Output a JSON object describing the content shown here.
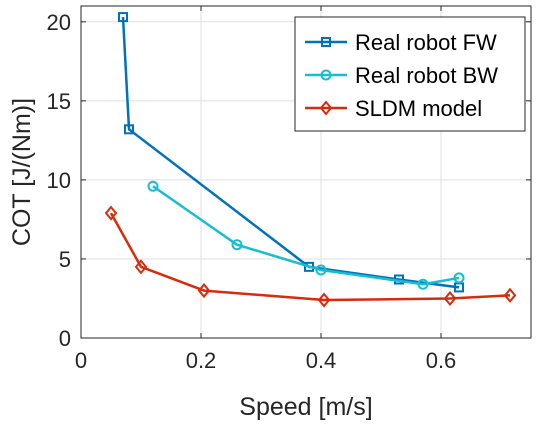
{
  "chart_data": {
    "type": "line",
    "title": "",
    "xlabel": "Speed [m/s]",
    "ylabel": "COT [J/(Nm)]",
    "xlim": [
      0,
      0.75
    ],
    "ylim": [
      0,
      21
    ],
    "xticks": [
      0,
      0.2,
      0.4,
      0.6
    ],
    "xtick_labels": [
      "0",
      "0.2",
      "0.4",
      "0.6"
    ],
    "yticks": [
      0,
      5,
      10,
      15,
      20
    ],
    "ytick_labels": [
      "0",
      "5",
      "10",
      "15",
      "20"
    ],
    "grid": true,
    "legend_position": "top-right",
    "series": [
      {
        "name": "Real robot FW",
        "color": "#0072BD",
        "marker": "square",
        "x": [
          0.07,
          0.08,
          0.38,
          0.53,
          0.63
        ],
        "y": [
          20.3,
          13.2,
          4.5,
          3.7,
          3.2
        ]
      },
      {
        "name": "Real robot BW",
        "color": "#17BECF",
        "marker": "circle",
        "x": [
          0.12,
          0.26,
          0.4,
          0.57,
          0.63
        ],
        "y": [
          9.6,
          5.9,
          4.3,
          3.4,
          3.8
        ]
      },
      {
        "name": "SLDM model",
        "color": "#D62C0C",
        "marker": "diamond",
        "x": [
          0.05,
          0.1,
          0.205,
          0.405,
          0.615,
          0.715
        ],
        "y": [
          7.9,
          4.5,
          3.0,
          2.4,
          2.5,
          2.7
        ]
      }
    ]
  }
}
